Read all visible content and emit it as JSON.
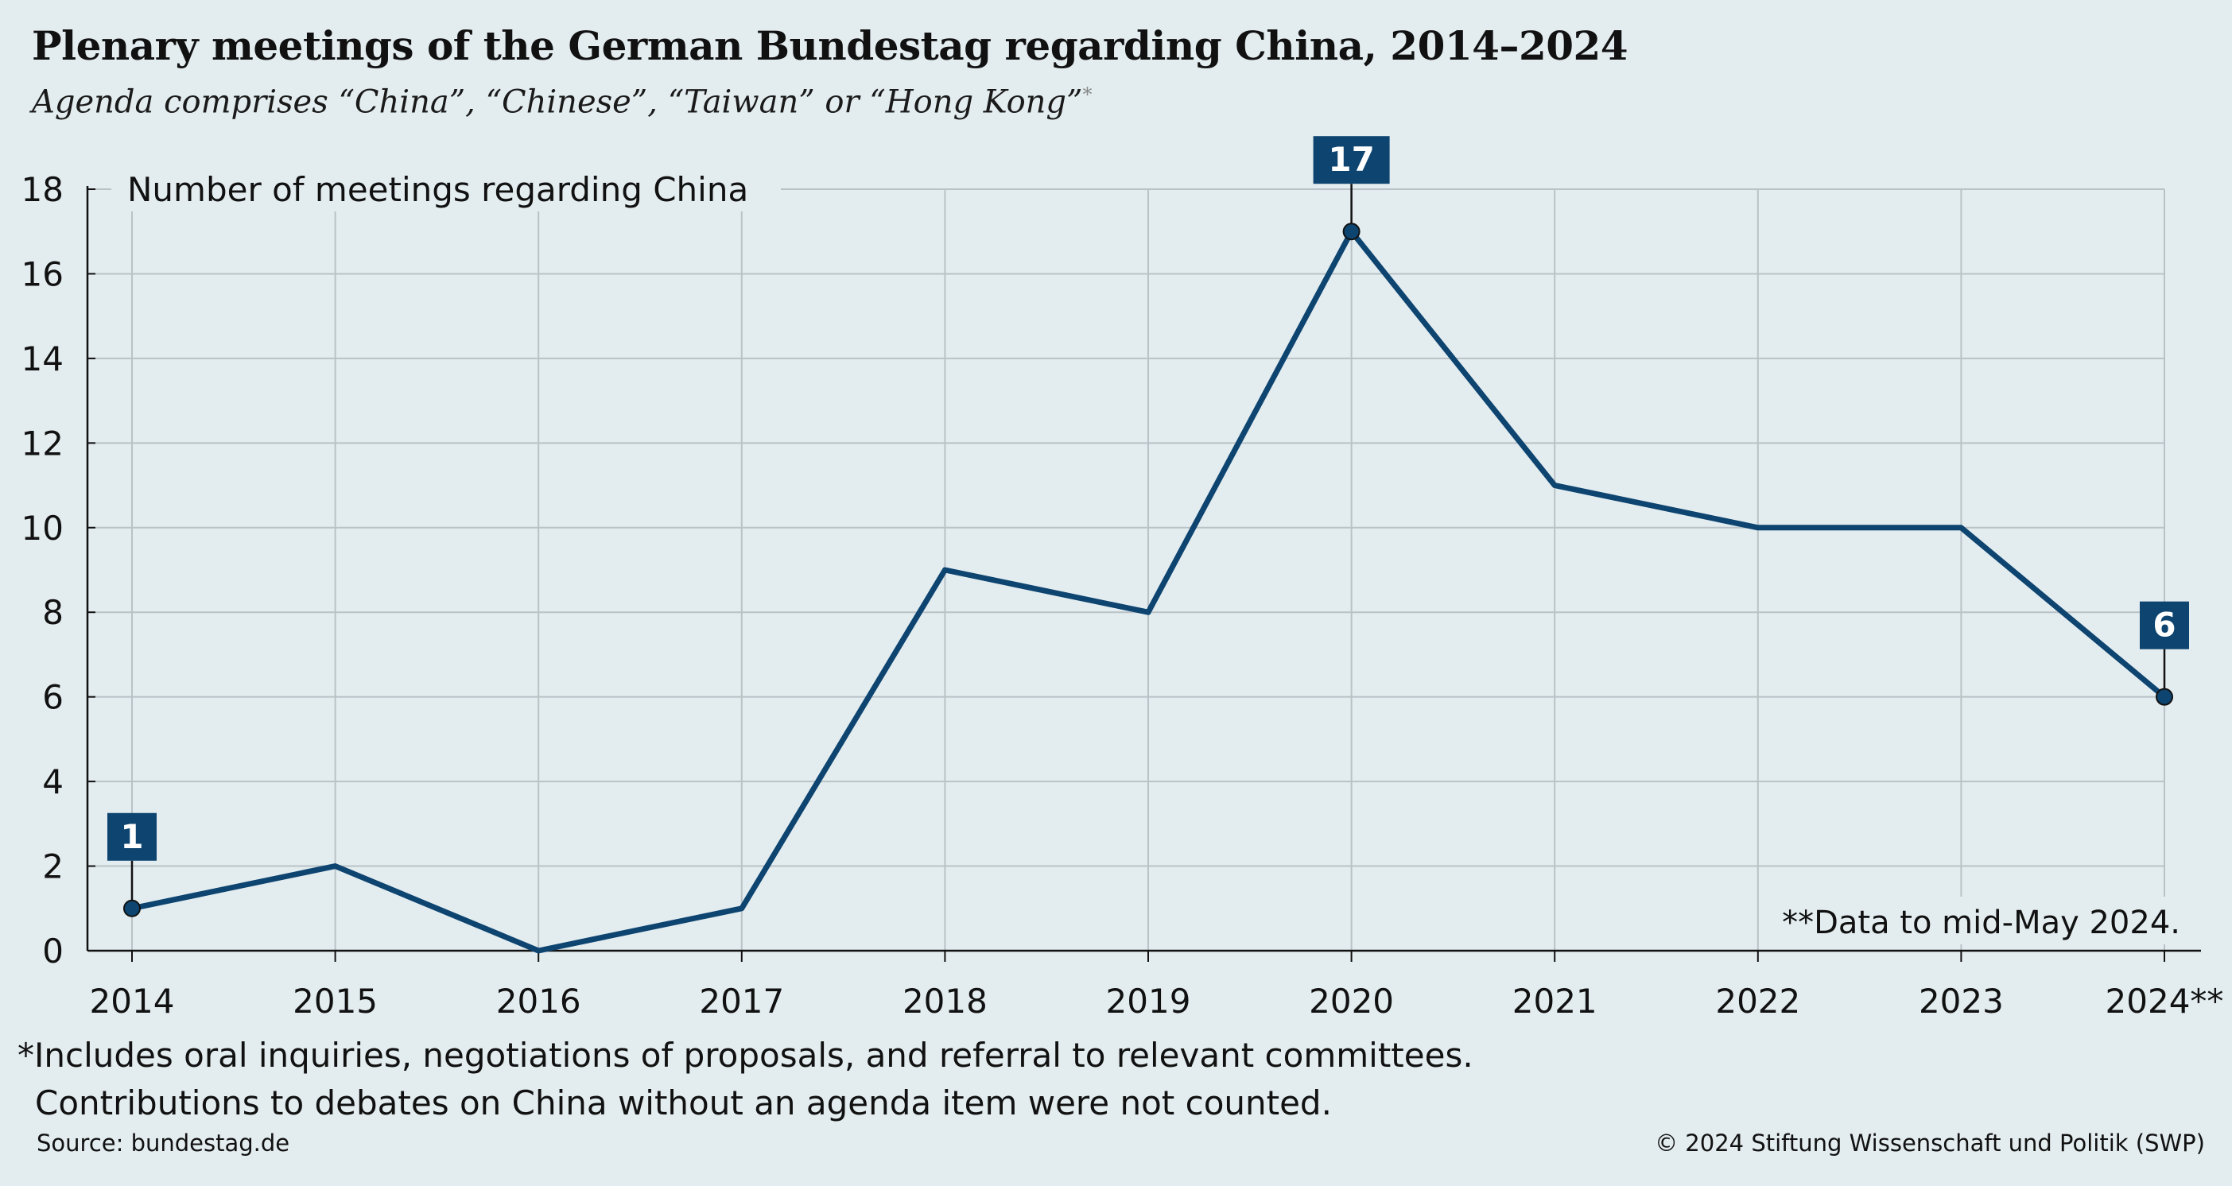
{
  "header": {
    "title": "Plenary meetings of the German Bundestag regarding China, 2014–2024",
    "subtitle": "Agenda comprises “China”, “Chinese”, “Taiwan” or “Hong Kong”",
    "subtitle_mark": "*"
  },
  "chart_data": {
    "type": "line",
    "ylabel": "Number of meetings regarding China",
    "categories": [
      "2014",
      "2015",
      "2016",
      "2017",
      "2018",
      "2019",
      "2020",
      "2021",
      "2022",
      "2023",
      "2024**"
    ],
    "values": [
      1,
      2,
      0,
      1,
      9,
      8,
      17,
      11,
      10,
      10,
      6
    ],
    "ylim": [
      0,
      18
    ],
    "yticks": [
      0,
      2,
      4,
      6,
      8,
      10,
      12,
      14,
      16,
      18
    ],
    "grid": true,
    "highlighted_points": [
      0,
      6,
      10
    ],
    "annotation": "**Data to mid-May 2024.",
    "line_color": "#0d4470",
    "label_color": "#0d4470"
  },
  "footnote": {
    "line1": "*Includes oral inquiries, negotiations of proposals, and referral to relevant committees.",
    "line2": "Contributions to debates on China without an agenda item were not counted."
  },
  "source": "Source: bundestag.de",
  "copyright": "© 2024 Stiftung Wissenschaft und Politik (SWP)"
}
